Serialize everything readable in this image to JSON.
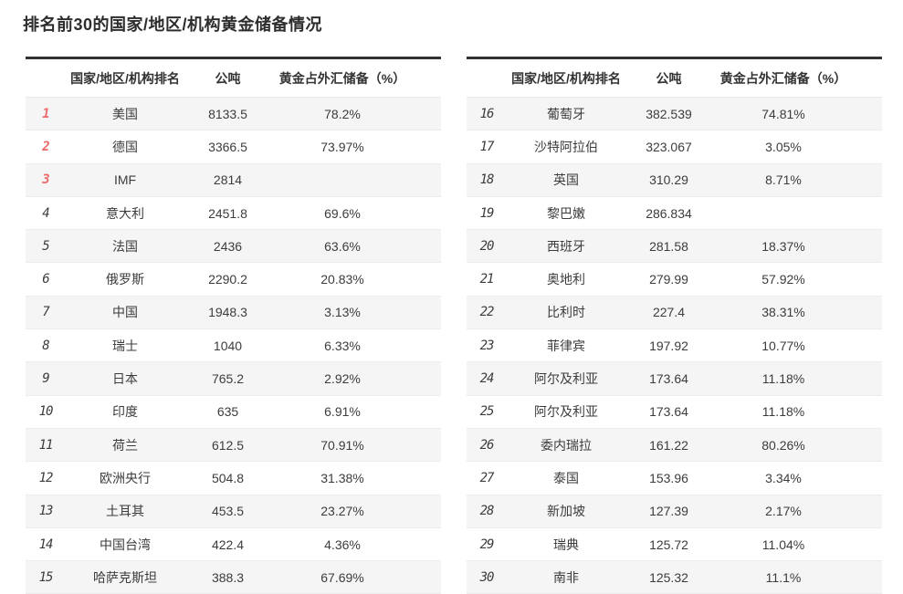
{
  "page_title": "排名前30的国家/地区/机构黄金储备情况",
  "colors": {
    "accent_rank_red": "#ec6a6a",
    "rank_gray": "#5a5a5a",
    "table_top_border": "#323232",
    "row_alt_background": "#f5f5f5",
    "row_divider": "#ececec",
    "text": "#333333"
  },
  "columns": {
    "rank_header": "",
    "country_header": "国家/地区/机构排名",
    "tons_header": "公吨",
    "pct_header": "黄金占外汇储备（%）"
  },
  "tables": [
    {
      "rows": [
        {
          "rank": "1",
          "name": "美国",
          "tons": "8133.5",
          "pct": "78.2%",
          "highlight": true
        },
        {
          "rank": "2",
          "name": "德国",
          "tons": "3366.5",
          "pct": "73.97%",
          "highlight": true
        },
        {
          "rank": "3",
          "name": "IMF",
          "tons": "2814",
          "pct": "",
          "highlight": true
        },
        {
          "rank": "4",
          "name": "意大利",
          "tons": "2451.8",
          "pct": "69.6%",
          "highlight": false
        },
        {
          "rank": "5",
          "name": "法国",
          "tons": "2436",
          "pct": "63.6%",
          "highlight": false
        },
        {
          "rank": "6",
          "name": "俄罗斯",
          "tons": "2290.2",
          "pct": "20.83%",
          "highlight": false
        },
        {
          "rank": "7",
          "name": "中国",
          "tons": "1948.3",
          "pct": "3.13%",
          "highlight": false
        },
        {
          "rank": "8",
          "name": "瑞士",
          "tons": "1040",
          "pct": "6.33%",
          "highlight": false
        },
        {
          "rank": "9",
          "name": "日本",
          "tons": "765.2",
          "pct": "2.92%",
          "highlight": false
        },
        {
          "rank": "10",
          "name": "印度",
          "tons": "635",
          "pct": "6.91%",
          "highlight": false
        },
        {
          "rank": "11",
          "name": "荷兰",
          "tons": "612.5",
          "pct": "70.91%",
          "highlight": false
        },
        {
          "rank": "12",
          "name": "欧洲央行",
          "tons": "504.8",
          "pct": "31.38%",
          "highlight": false
        },
        {
          "rank": "13",
          "name": "土耳其",
          "tons": "453.5",
          "pct": "23.27%",
          "highlight": false
        },
        {
          "rank": "14",
          "name": "中国台湾",
          "tons": "422.4",
          "pct": "4.36%",
          "highlight": false
        },
        {
          "rank": "15",
          "name": "哈萨克斯坦",
          "tons": "388.3",
          "pct": "67.69%",
          "highlight": false
        }
      ]
    },
    {
      "rows": [
        {
          "rank": "16",
          "name": "葡萄牙",
          "tons": "382.539",
          "pct": "74.81%",
          "highlight": false
        },
        {
          "rank": "17",
          "name": "沙特阿拉伯",
          "tons": "323.067",
          "pct": "3.05%",
          "highlight": false
        },
        {
          "rank": "18",
          "name": "英国",
          "tons": "310.29",
          "pct": "8.71%",
          "highlight": false
        },
        {
          "rank": "19",
          "name": "黎巴嫩",
          "tons": "286.834",
          "pct": "",
          "highlight": false
        },
        {
          "rank": "20",
          "name": "西班牙",
          "tons": "281.58",
          "pct": "18.37%",
          "highlight": false
        },
        {
          "rank": "21",
          "name": "奥地利",
          "tons": "279.99",
          "pct": "57.92%",
          "highlight": false
        },
        {
          "rank": "22",
          "name": "比利时",
          "tons": "227.4",
          "pct": "38.31%",
          "highlight": false
        },
        {
          "rank": "23",
          "name": "菲律宾",
          "tons": "197.92",
          "pct": "10.77%",
          "highlight": false
        },
        {
          "rank": "24",
          "name": "阿尔及利亚",
          "tons": "173.64",
          "pct": "11.18%",
          "highlight": false
        },
        {
          "rank": "25",
          "name": "阿尔及利亚",
          "tons": "173.64",
          "pct": "11.18%",
          "highlight": false
        },
        {
          "rank": "26",
          "name": "委内瑞拉",
          "tons": "161.22",
          "pct": "80.26%",
          "highlight": false
        },
        {
          "rank": "27",
          "name": "泰国",
          "tons": "153.96",
          "pct": "3.34%",
          "highlight": false
        },
        {
          "rank": "28",
          "name": "新加坡",
          "tons": "127.39",
          "pct": "2.17%",
          "highlight": false
        },
        {
          "rank": "29",
          "name": "瑞典",
          "tons": "125.72",
          "pct": "11.04%",
          "highlight": false
        },
        {
          "rank": "30",
          "name": "南非",
          "tons": "125.32",
          "pct": "11.1%",
          "highlight": false
        }
      ]
    }
  ]
}
